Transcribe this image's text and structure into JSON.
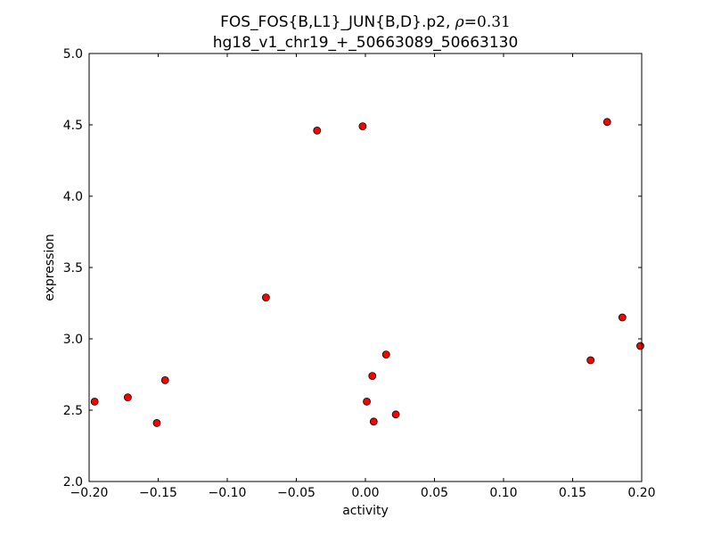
{
  "chart_data": {
    "type": "scatter",
    "title_line1_prefix": "FOS_FOS{B,L1}_JUN{B,D}.p2, ",
    "title_rho_symbol": "ρ",
    "title_rho_value": "=0.31",
    "title_line2": "hg18_v1_chr19_+_50663089_50663130",
    "xlabel": "activity",
    "ylabel": "expression",
    "xlim": [
      -0.2,
      0.2
    ],
    "ylim": [
      2.0,
      5.0
    ],
    "xticks": [
      -0.2,
      -0.15,
      -0.1,
      -0.05,
      0.0,
      0.05,
      0.1,
      0.15,
      0.2
    ],
    "xtick_labels": [
      "−0.20",
      "−0.15",
      "−0.10",
      "−0.05",
      "0.00",
      "0.05",
      "0.10",
      "0.15",
      "0.20"
    ],
    "yticks": [
      2.0,
      2.5,
      3.0,
      3.5,
      4.0,
      4.5,
      5.0
    ],
    "ytick_labels": [
      "2.0",
      "2.5",
      "3.0",
      "3.5",
      "4.0",
      "4.5",
      "5.0"
    ],
    "grid": false,
    "marker_color": "#ff0000",
    "marker_edge_color": "#000000",
    "points": [
      {
        "x": -0.196,
        "y": 2.56
      },
      {
        "x": -0.172,
        "y": 2.59
      },
      {
        "x": -0.151,
        "y": 2.41
      },
      {
        "x": -0.145,
        "y": 2.71
      },
      {
        "x": -0.072,
        "y": 3.29
      },
      {
        "x": -0.035,
        "y": 4.46
      },
      {
        "x": -0.002,
        "y": 4.49
      },
      {
        "x": 0.001,
        "y": 2.56
      },
      {
        "x": 0.005,
        "y": 2.74
      },
      {
        "x": 0.006,
        "y": 2.42
      },
      {
        "x": 0.015,
        "y": 2.89
      },
      {
        "x": 0.022,
        "y": 2.47
      },
      {
        "x": 0.163,
        "y": 2.85
      },
      {
        "x": 0.175,
        "y": 4.52
      },
      {
        "x": 0.186,
        "y": 3.15
      },
      {
        "x": 0.199,
        "y": 2.95
      }
    ]
  }
}
